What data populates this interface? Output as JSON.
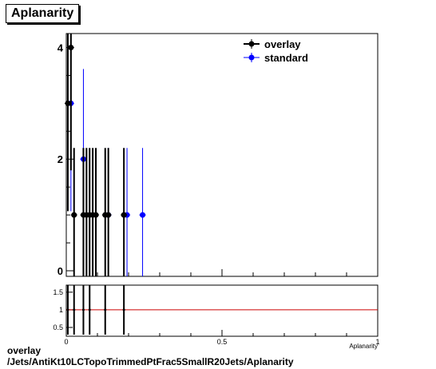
{
  "title": "Aplanarity",
  "caption": {
    "line1": "overlay",
    "line2": "/Jets/AntiKt10LCTopoTrimmedPtFrac5SmallR20Jets/Aplanarity"
  },
  "colors": {
    "overlay": "#000000",
    "standard": "#0000ff",
    "ratio_line": "#cc0000"
  },
  "chart_data": [
    {
      "type": "scatter",
      "panel": "main",
      "title": "Aplanarity",
      "xlabel": "",
      "ylabel": "",
      "xlim": [
        0,
        1
      ],
      "ylim": [
        -0.1,
        4.25
      ],
      "yticks": [
        0,
        2,
        4
      ],
      "legend_position": "top-right",
      "series": [
        {
          "name": "overlay",
          "color": "#000000",
          "points": [
            {
              "x": 0.005,
              "y": 3
            },
            {
              "x": 0.015,
              "y": 4
            },
            {
              "x": 0.025,
              "y": 1
            },
            {
              "x": 0.055,
              "y": 1
            },
            {
              "x": 0.065,
              "y": 1
            },
            {
              "x": 0.075,
              "y": 1
            },
            {
              "x": 0.085,
              "y": 1
            },
            {
              "x": 0.095,
              "y": 1
            },
            {
              "x": 0.125,
              "y": 1
            },
            {
              "x": 0.135,
              "y": 1
            },
            {
              "x": 0.185,
              "y": 1
            }
          ]
        },
        {
          "name": "standard",
          "color": "#0000ff",
          "points": [
            {
              "x": 0.015,
              "y": 3
            },
            {
              "x": 0.055,
              "y": 2
            },
            {
              "x": 0.135,
              "y": 1
            },
            {
              "x": 0.195,
              "y": 1
            },
            {
              "x": 0.245,
              "y": 1
            }
          ]
        }
      ]
    },
    {
      "type": "scatter",
      "panel": "ratio",
      "xlabel": "Aplanarity",
      "ylabel": "",
      "xlim": [
        0,
        1
      ],
      "ylim": [
        0.25,
        1.7
      ],
      "yticks": [
        0.5,
        1,
        1.5
      ],
      "xticks": [
        0,
        0.5,
        1
      ],
      "reference_line": 1,
      "points": [
        {
          "x": 0.005,
          "y": 1.0
        },
        {
          "x": 0.025,
          "y": 1.0
        },
        {
          "x": 0.055,
          "y": 1.0
        },
        {
          "x": 0.075,
          "y": 1.0
        },
        {
          "x": 0.125,
          "y": 1.0
        },
        {
          "x": 0.185,
          "y": 1.0
        }
      ]
    }
  ]
}
